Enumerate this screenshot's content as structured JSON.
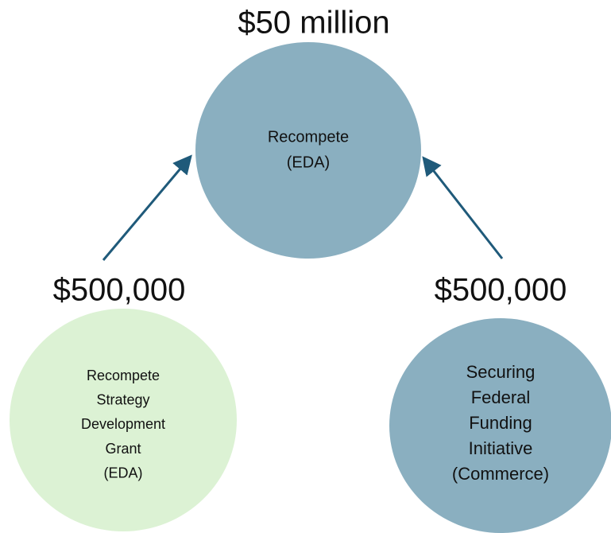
{
  "nodes": [
    {
      "amount": "$50 million",
      "lines": [
        "Recompete",
        "(EDA)"
      ]
    },
    {
      "amount": "$500,000",
      "lines": [
        "Recompete",
        "Strategy",
        "Development",
        "Grant",
        "(EDA)"
      ]
    },
    {
      "amount": "$500,000",
      "lines": [
        "Securing",
        "Federal",
        "Funding",
        "Initiative",
        "(Commerce)"
      ]
    }
  ]
}
